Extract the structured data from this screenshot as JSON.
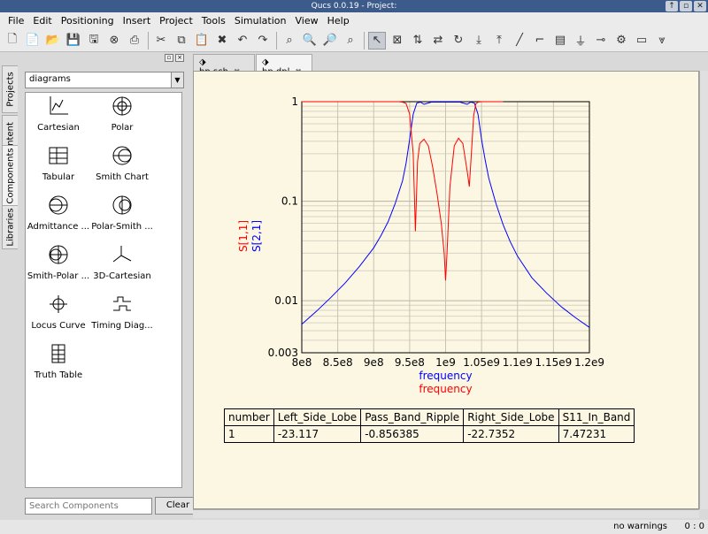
{
  "window": {
    "title": "Qucs 0.0.19 - Project:"
  },
  "menu": [
    "File",
    "Edit",
    "Positioning",
    "Insert",
    "Project",
    "Tools",
    "Simulation",
    "View",
    "Help"
  ],
  "side_tabs": [
    "Projects",
    "Content",
    "Components",
    "Libraries"
  ],
  "dock": {
    "category": "diagrams",
    "components": [
      "Cartesian",
      "Polar",
      "Tabular",
      "Smith Chart",
      "Admittance ...",
      "Polar-Smith ...",
      "Smith-Polar ...",
      "3D-Cartesian",
      "Locus Curve",
      "Timing Diag...",
      "Truth Table"
    ],
    "search_placeholder": "Search Components",
    "clear_label": "Clear"
  },
  "doc_tabs": [
    "bp.sch",
    "bp.dpl"
  ],
  "status": {
    "warnings": "no warnings",
    "position": "0 : 0"
  },
  "result_table": {
    "headers": [
      "number",
      "Left_Side_Lobe",
      "Pass_Band_Ripple",
      "Right_Side_Lobe",
      "S11_In_Band"
    ],
    "rows": [
      [
        "1",
        "-23.117",
        "-0.856385",
        "-22.7352",
        "7.47231"
      ]
    ]
  },
  "chart_data": {
    "type": "line",
    "xlabel": [
      "frequency",
      "frequency"
    ],
    "ylabel": [
      "S[1,1]",
      "S[2,1]"
    ],
    "x_tick_labels": [
      "8e8",
      "8.5e8",
      "9e8",
      "9.5e8",
      "1e9",
      "1.05e9",
      "1.1e9",
      "1.15e9",
      "1.2e9"
    ],
    "y_tick_labels": [
      "1",
      "0.1",
      "0.01",
      "0.003"
    ],
    "xlim": [
      800000000,
      1200000000
    ],
    "ylim": [
      0.003,
      1
    ],
    "y_scale": "log",
    "grid": true,
    "series": [
      {
        "name": "S[2,1]",
        "color": "#0000ff",
        "x": [
          800000000,
          820000000,
          840000000,
          860000000,
          880000000,
          900000000,
          910000000,
          920000000,
          930000000,
          940000000,
          945000000,
          950000000,
          955000000,
          960000000,
          965000000,
          970000000,
          980000000,
          990000000,
          1000000000,
          1010000000,
          1020000000,
          1030000000,
          1035000000,
          1040000000,
          1045000000,
          1050000000,
          1055000000,
          1060000000,
          1070000000,
          1080000000,
          1090000000,
          1100000000,
          1120000000,
          1140000000,
          1160000000,
          1180000000,
          1200000000
        ],
        "y": [
          0.0058,
          0.0078,
          0.0107,
          0.015,
          0.022,
          0.034,
          0.045,
          0.062,
          0.095,
          0.16,
          0.24,
          0.42,
          0.75,
          0.97,
          0.99,
          0.94,
          0.99,
          0.99,
          0.99,
          0.99,
          0.99,
          0.94,
          0.99,
          0.97,
          0.75,
          0.42,
          0.26,
          0.17,
          0.095,
          0.058,
          0.039,
          0.028,
          0.017,
          0.012,
          0.0088,
          0.0068,
          0.0054
        ]
      },
      {
        "name": "S[1,1]",
        "color": "#ff0000",
        "x": [
          800000000,
          900000000,
          935000000,
          940000000,
          945000000,
          950000000,
          955000000,
          958000000,
          961000000,
          964000000,
          970000000,
          976000000,
          982000000,
          988000000,
          994000000,
          998000000,
          1000000000,
          1002000000,
          1006000000,
          1012000000,
          1018000000,
          1024000000,
          1030000000,
          1033000000,
          1036000000,
          1039000000,
          1042000000,
          1045000000,
          1050000000,
          1060000000,
          1080000000
        ],
        "y": [
          1,
          1,
          0.999,
          0.99,
          0.96,
          0.75,
          0.3,
          0.05,
          0.25,
          0.38,
          0.42,
          0.36,
          0.22,
          0.12,
          0.06,
          0.03,
          0.016,
          0.03,
          0.14,
          0.36,
          0.43,
          0.38,
          0.2,
          0.14,
          0.32,
          0.72,
          0.95,
          0.99,
          0.999,
          1,
          1
        ]
      }
    ]
  }
}
